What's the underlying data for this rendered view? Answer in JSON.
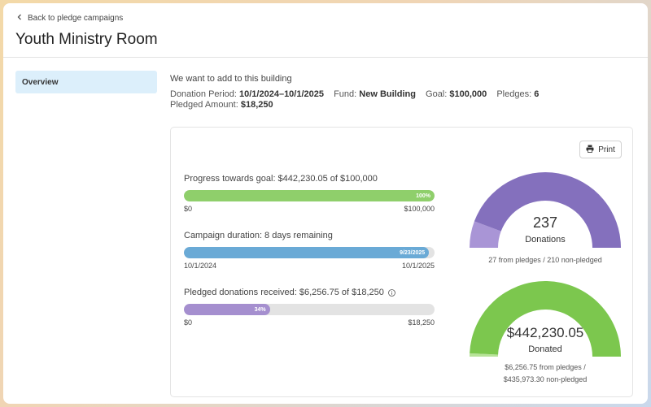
{
  "nav": {
    "back_label": "Back to pledge campaigns"
  },
  "page": {
    "title": "Youth Ministry Room"
  },
  "sidebar": {
    "items": [
      {
        "label": "Overview",
        "active": true
      }
    ]
  },
  "campaign": {
    "description": "We want to add to this building",
    "donation_period_label": "Donation Period:",
    "donation_period_value": "10/1/2024–10/1/2025",
    "fund_label": "Fund:",
    "fund_value": "New Building",
    "goal_label": "Goal:",
    "goal_value": "$100,000",
    "pledges_label": "Pledges:",
    "pledges_value": "6",
    "pledged_amount_label": "Pledged Amount:",
    "pledged_amount_value": "$18,250"
  },
  "card": {
    "print_label": "Print",
    "progress": {
      "label": "Progress towards goal: $442,230.05 of $100,000",
      "percent_label": "100%",
      "fill_fraction": 1.0,
      "start_label": "$0",
      "end_label": "$100,000",
      "color": "#8fcf6b"
    },
    "duration": {
      "label": "Campaign duration: 8 days remaining",
      "marker_label": "9/23/2025",
      "fill_fraction": 0.978,
      "start_label": "10/1/2024",
      "end_label": "10/1/2025",
      "color": "#6aaad6"
    },
    "pledged": {
      "label": "Pledged donations received: $6,256.75 of $18,250",
      "percent_label": "34%",
      "fill_fraction": 0.343,
      "start_label": "$0",
      "end_label": "$18,250",
      "color": "#a58fcf"
    }
  },
  "gauges": {
    "donations": {
      "value": "237",
      "label": "Donations",
      "caption": "27 from pledges / 210 non-pledged",
      "pledged_fraction": 0.114,
      "main_color": "#8470bd",
      "pledged_color": "#a995d6"
    },
    "donated": {
      "value": "$442,230.05",
      "label": "Donated",
      "caption_line1": "$6,256.75 from pledges /",
      "caption_line2": "$435,973.30 non-pledged",
      "pledged_fraction": 0.014,
      "main_color": "#7cc74e",
      "pledged_color": "#b7e398"
    }
  }
}
